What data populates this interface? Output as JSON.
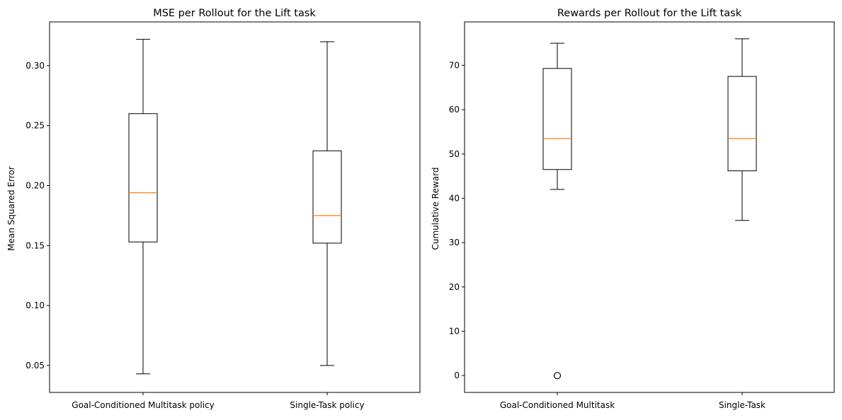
{
  "chart_data": [
    {
      "type": "box",
      "title": "MSE per Rollout for the Lift task",
      "xlabel": "",
      "ylabel": "Mean Squared Error",
      "ylim": [
        0.0275,
        0.3365
      ],
      "yticks": [
        0.05,
        0.1,
        0.15,
        0.2,
        0.25,
        0.3
      ],
      "ytick_labels": [
        "0.05",
        "0.10",
        "0.15",
        "0.20",
        "0.25",
        "0.30"
      ],
      "categories": [
        "Goal-Conditioned Multitask policy",
        "Single-Task policy"
      ],
      "boxes": [
        {
          "whisker_low": 0.043,
          "q1": 0.153,
          "median": 0.194,
          "q3": 0.26,
          "whisker_high": 0.322,
          "outliers": []
        },
        {
          "whisker_low": 0.05,
          "q1": 0.152,
          "median": 0.175,
          "q3": 0.229,
          "whisker_high": 0.32,
          "outliers": []
        }
      ],
      "box_color": "#000000",
      "median_color": "#ff7f0e",
      "grid": false
    },
    {
      "type": "box",
      "title": "Rewards per Rollout for the Lift task",
      "xlabel": "",
      "ylabel": "Cumulative Reward",
      "ylim": [
        -3.8,
        79.8
      ],
      "yticks": [
        0,
        10,
        20,
        30,
        40,
        50,
        60,
        70
      ],
      "ytick_labels": [
        "0",
        "10",
        "20",
        "30",
        "40",
        "50",
        "60",
        "70"
      ],
      "categories": [
        "Goal-Conditioned Multitask",
        "Single-Task"
      ],
      "boxes": [
        {
          "whisker_low": 42,
          "q1": 46.5,
          "median": 53.5,
          "q3": 69.3,
          "whisker_high": 75,
          "outliers": [
            0
          ]
        },
        {
          "whisker_low": 35,
          "q1": 46.2,
          "median": 53.5,
          "q3": 67.5,
          "whisker_high": 76,
          "outliers": []
        }
      ],
      "box_color": "#000000",
      "median_color": "#ff7f0e",
      "grid": false
    }
  ]
}
